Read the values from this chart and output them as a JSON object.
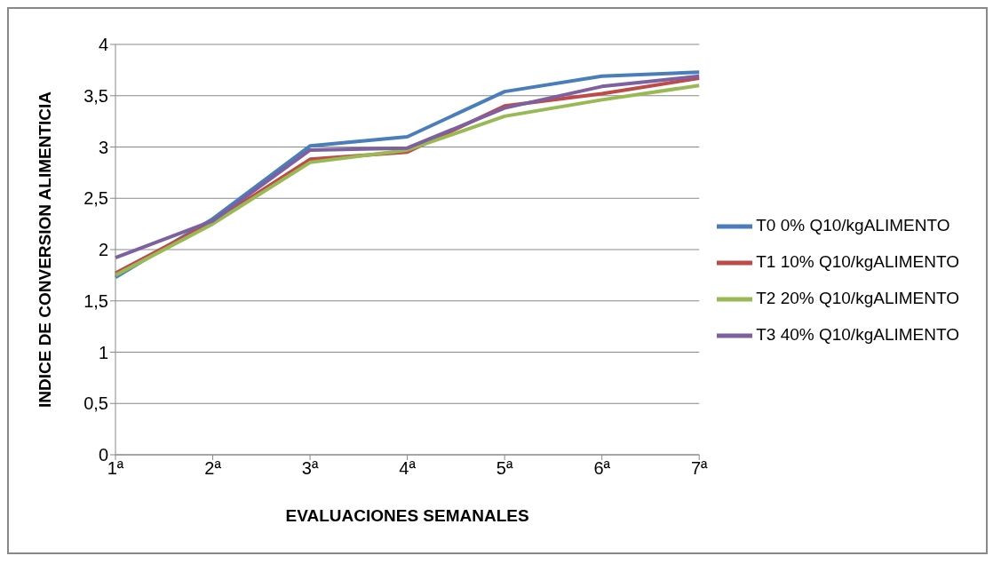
{
  "chart_data": {
    "type": "line",
    "xlabel": "EVALUACIONES SEMANALES",
    "ylabel": "INDICE DE CONVERSION ALIMENTICIA",
    "categories": [
      "1ª",
      "2ª",
      "3ª",
      "4ª",
      "5ª",
      "6ª",
      "7ª"
    ],
    "series": [
      {
        "name": "T0 0%  Q10/kgALIMENTO",
        "color": "#4a7ebb",
        "values": [
          1.73,
          2.3,
          3.01,
          3.1,
          3.54,
          3.69,
          3.73
        ]
      },
      {
        "name": "T1 10% Q10/kgALIMENTO",
        "color": "#be4b48",
        "values": [
          1.77,
          2.27,
          2.88,
          2.95,
          3.4,
          3.52,
          3.67
        ]
      },
      {
        "name": "T2 20% Q10/kgALIMENTO",
        "color": "#98b954",
        "values": [
          1.75,
          2.25,
          2.85,
          2.97,
          3.3,
          3.46,
          3.6
        ]
      },
      {
        "name": "T3 40% Q10/kgALIMENTO",
        "color": "#7d60a0",
        "values": [
          1.92,
          2.28,
          2.97,
          2.99,
          3.38,
          3.59,
          3.69
        ]
      }
    ],
    "ylim": [
      0,
      4
    ],
    "yticks": [
      0,
      {
        "value": 0.5,
        "label": "0,5"
      },
      1,
      {
        "value": 1.5,
        "label": "1,5"
      },
      2,
      {
        "value": 2.5,
        "label": "2,5"
      },
      3,
      {
        "value": 3.5,
        "label": "3,5"
      },
      4
    ],
    "grid": "y",
    "legend": "right",
    "marker": "none",
    "line_style": "solid"
  }
}
